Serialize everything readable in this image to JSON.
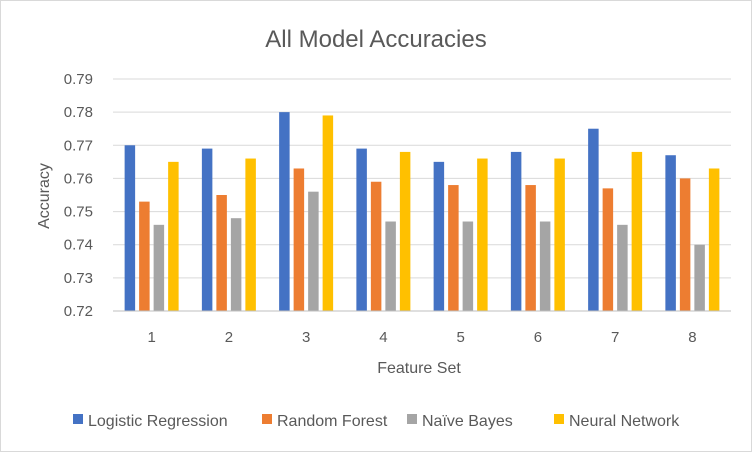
{
  "chart_data": {
    "type": "bar",
    "title": "All Model Accuracies",
    "xlabel": "Feature Set",
    "ylabel": "Accuracy",
    "categories": [
      "1",
      "2",
      "3",
      "4",
      "5",
      "6",
      "7",
      "8"
    ],
    "ylim": [
      0.72,
      0.79
    ],
    "yticks": [
      "0.72",
      "0.73",
      "0.74",
      "0.75",
      "0.76",
      "0.77",
      "0.78",
      "0.79"
    ],
    "grid": true,
    "legend_position": "bottom",
    "series": [
      {
        "name": "Logistic Regression",
        "color": "#4472C4",
        "values": [
          0.77,
          0.769,
          0.78,
          0.769,
          0.765,
          0.768,
          0.775,
          0.767
        ]
      },
      {
        "name": "Random Forest",
        "color": "#ED7D31",
        "values": [
          0.753,
          0.755,
          0.763,
          0.759,
          0.758,
          0.758,
          0.757,
          0.76
        ]
      },
      {
        "name": "Naïve Bayes",
        "color": "#A5A5A5",
        "values": [
          0.746,
          0.748,
          0.756,
          0.747,
          0.747,
          0.747,
          0.746,
          0.74
        ]
      },
      {
        "name": "Neural Network",
        "color": "#FFC000",
        "values": [
          0.765,
          0.766,
          0.779,
          0.768,
          0.766,
          0.766,
          0.768,
          0.763
        ]
      }
    ]
  }
}
